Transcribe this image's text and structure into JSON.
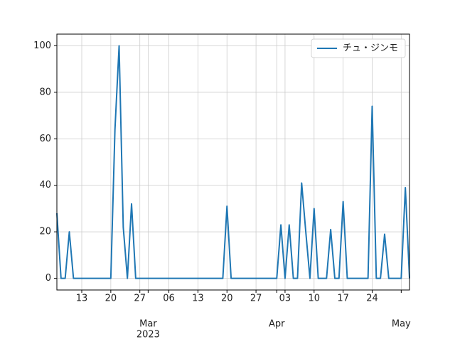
{
  "chart_data": {
    "type": "line",
    "x": [
      "2023-02-07",
      "2023-02-08",
      "2023-02-09",
      "2023-02-10",
      "2023-02-11",
      "2023-02-12",
      "2023-02-13",
      "2023-02-14",
      "2023-02-15",
      "2023-02-16",
      "2023-02-17",
      "2023-02-18",
      "2023-02-19",
      "2023-02-20",
      "2023-02-21",
      "2023-02-22",
      "2023-02-23",
      "2023-02-24",
      "2023-02-25",
      "2023-02-26",
      "2023-02-27",
      "2023-02-28",
      "2023-03-01",
      "2023-03-02",
      "2023-03-03",
      "2023-03-04",
      "2023-03-05",
      "2023-03-06",
      "2023-03-07",
      "2023-03-08",
      "2023-03-09",
      "2023-03-10",
      "2023-03-11",
      "2023-03-12",
      "2023-03-13",
      "2023-03-14",
      "2023-03-15",
      "2023-03-16",
      "2023-03-17",
      "2023-03-18",
      "2023-03-19",
      "2023-03-20",
      "2023-03-21",
      "2023-03-22",
      "2023-03-23",
      "2023-03-24",
      "2023-03-25",
      "2023-03-26",
      "2023-03-27",
      "2023-03-28",
      "2023-03-29",
      "2023-03-30",
      "2023-03-31",
      "2023-04-01",
      "2023-04-02",
      "2023-04-03",
      "2023-04-04",
      "2023-04-05",
      "2023-04-06",
      "2023-04-07",
      "2023-04-08",
      "2023-04-09",
      "2023-04-10",
      "2023-04-11",
      "2023-04-12",
      "2023-04-13",
      "2023-04-14",
      "2023-04-15",
      "2023-04-16",
      "2023-04-17",
      "2023-04-18",
      "2023-04-19",
      "2023-04-20",
      "2023-04-21",
      "2023-04-22",
      "2023-04-23",
      "2023-04-24",
      "2023-04-25",
      "2023-04-26",
      "2023-04-27",
      "2023-04-28",
      "2023-04-29",
      "2023-04-30",
      "2023-05-01",
      "2023-05-02",
      "2023-05-03"
    ],
    "series": [
      {
        "name": "チュ・ジンモ",
        "color": "#1f77b4",
        "values": [
          28,
          0,
          0,
          20,
          0,
          0,
          0,
          0,
          0,
          0,
          0,
          0,
          0,
          0,
          64,
          100,
          22,
          0,
          32,
          0,
          0,
          0,
          0,
          0,
          0,
          0,
          0,
          0,
          0,
          0,
          0,
          0,
          0,
          0,
          0,
          0,
          0,
          0,
          0,
          0,
          0,
          31,
          0,
          0,
          0,
          0,
          0,
          0,
          0,
          0,
          0,
          0,
          0,
          0,
          23,
          0,
          23,
          0,
          0,
          41,
          20,
          0,
          30,
          0,
          0,
          0,
          21,
          0,
          0,
          33,
          0,
          0,
          0,
          0,
          0,
          0,
          74,
          0,
          0,
          19,
          0,
          0,
          0,
          0,
          39,
          0
        ]
      }
    ],
    "xlim": [
      "2023-02-07",
      "2023-05-03"
    ],
    "xticks": [
      {
        "value": "2023-02-13",
        "label": "13"
      },
      {
        "value": "2023-02-20",
        "label": "20"
      },
      {
        "value": "2023-02-27",
        "label": "27"
      },
      {
        "value": "2023-03-01",
        "label": "Mar"
      },
      {
        "value": "2023-03-06",
        "label": "06"
      },
      {
        "value": "2023-03-13",
        "label": "13"
      },
      {
        "value": "2023-03-20",
        "label": "20"
      },
      {
        "value": "2023-03-27",
        "label": "27"
      },
      {
        "value": "2023-04-01",
        "label": "Apr"
      },
      {
        "value": "2023-04-03",
        "label": "03"
      },
      {
        "value": "2023-04-10",
        "label": "10"
      },
      {
        "value": "2023-04-17",
        "label": "17"
      },
      {
        "value": "2023-04-24",
        "label": "24"
      },
      {
        "value": "2023-05-01",
        "label": "May"
      }
    ],
    "year_label": "2023",
    "ylim": [
      -5,
      105
    ],
    "yticks": [
      0,
      20,
      40,
      60,
      80,
      100
    ],
    "grid": true,
    "legend": "upper right"
  }
}
